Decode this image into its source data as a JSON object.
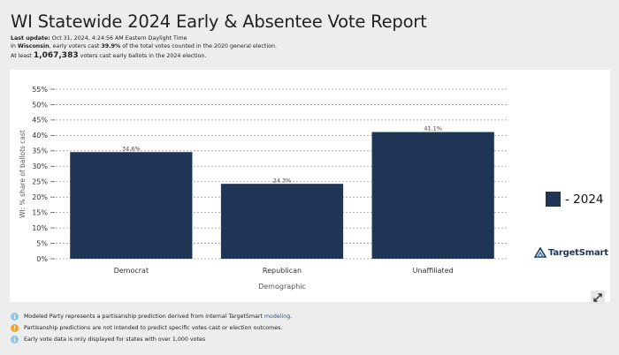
{
  "header": {
    "title": "WI Statewide 2024 Early & Absentee Vote Report",
    "last_update_label": "Last update:",
    "last_update_value": "Oct 31, 2024, 4:24:56 AM Eastern Daylight Time",
    "line2_prefix": "In",
    "line2_state": "Wisconsin",
    "line2_mid": ", early voters cast",
    "line2_pct": "39.9%",
    "line2_suffix": "of the total votes counted in the 2020 general election.",
    "line3_prefix": "At least",
    "line3_count": "1,067,383",
    "line3_suffix": "voters cast early ballots in the 2024 election."
  },
  "legend": {
    "label": "- 2024",
    "color": "#1f3556"
  },
  "brand": {
    "name": "TargetSmart"
  },
  "icons": {
    "expand": "expand-icon",
    "info": "info-icon",
    "warning": "warning-icon",
    "logo": "targetsmart-logo-icon"
  },
  "notes": {
    "n1_text": "Modeled Party represents a partisanship prediction derived from internal TargetSmart",
    "n1_link": "modeling",
    "n1_end": ".",
    "n2_text": "Partisanship predictions are not intended to predict specific votes cast or election outcomes.",
    "n3_text": "Early vote data is only displayed for states with over 1,000 votes"
  },
  "colors": {
    "bar": "#1f3556",
    "info": "#8cc8ee",
    "warning": "#f0a52a",
    "background": "#ededed"
  },
  "chart_data": {
    "type": "bar",
    "categories": [
      "Democrat",
      "Republican",
      "Unaffiliated"
    ],
    "series": [
      {
        "name": "2024",
        "values": [
          34.6,
          24.3,
          41.1
        ]
      }
    ],
    "data_labels": [
      "34.6%",
      "24.3%",
      "41.1%"
    ],
    "xlabel": "Demographic",
    "ylabel": "WI: % share of ballots cast",
    "ylim": [
      0,
      55
    ],
    "yticks": [
      0,
      5,
      10,
      15,
      20,
      25,
      30,
      35,
      40,
      45,
      50,
      55
    ],
    "ytick_labels": [
      "0%",
      "5%",
      "10%",
      "15%",
      "20%",
      "25%",
      "30%",
      "35%",
      "40%",
      "45%",
      "50%",
      "55%"
    ],
    "grid": true,
    "legend_position": "right"
  }
}
